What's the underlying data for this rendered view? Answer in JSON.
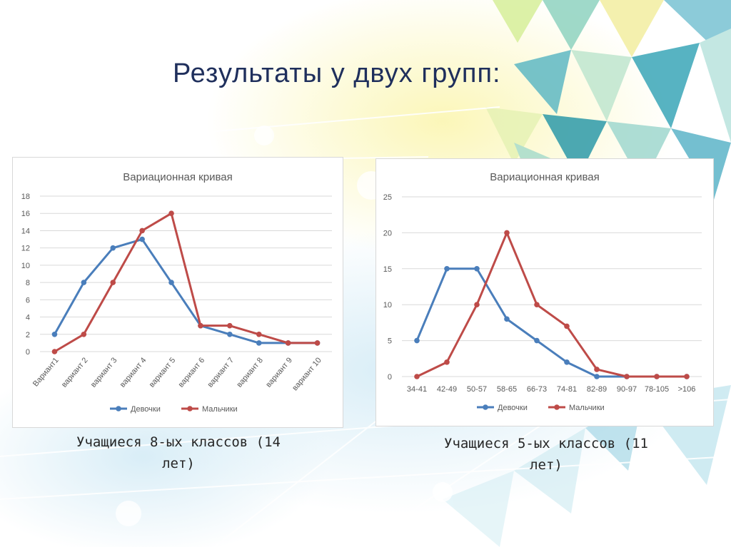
{
  "slide": {
    "title": "Результаты у двух групп:",
    "left_caption_line1": "Учащиеся 8-ых классов (14",
    "left_caption_line2": "лет)",
    "right_caption_line1": "Учащиеся 5-ых классов (11",
    "right_caption_line2": "лет)"
  },
  "colors": {
    "girls": "#4a7ebb",
    "boys": "#be4b48",
    "title": "#1f2f5c",
    "grid": "#d9d9d9"
  },
  "chart_data": [
    {
      "type": "line",
      "title": "Вариационная кривая",
      "categories": [
        "Вариант1",
        "вариант 2",
        "вариант 3",
        "вариант 4",
        "вариант 5",
        "вариант 6",
        "вариант 7",
        "вариант 8",
        "вариант 9",
        "вариант 10"
      ],
      "series": [
        {
          "name": "Девочки",
          "values": [
            2,
            8,
            12,
            13,
            8,
            3,
            2,
            1,
            1,
            1
          ]
        },
        {
          "name": "Мальчики",
          "values": [
            0,
            2,
            8,
            14,
            16,
            3,
            3,
            2,
            1,
            1
          ]
        }
      ],
      "ylim": [
        0,
        18
      ],
      "yticks": [
        0,
        2,
        4,
        6,
        8,
        10,
        12,
        14,
        16,
        18
      ],
      "grid": true,
      "legend": "bottom",
      "xlabel": "",
      "ylabel": ""
    },
    {
      "type": "line",
      "title": "Вариационная кривая",
      "categories": [
        "34-41",
        "42-49",
        "50-57",
        "58-65",
        "66-73",
        "74-81",
        "82-89",
        "90-97",
        "78-105",
        ">106"
      ],
      "series": [
        {
          "name": "Девочки",
          "values": [
            5,
            15,
            15,
            8,
            5,
            2,
            0,
            0,
            0,
            0
          ]
        },
        {
          "name": "Мальчики",
          "values": [
            0,
            2,
            10,
            20,
            10,
            7,
            1,
            0,
            0,
            0
          ]
        }
      ],
      "ylim": [
        0,
        25
      ],
      "yticks": [
        0,
        5,
        10,
        15,
        20,
        25
      ],
      "grid": true,
      "legend": "bottom",
      "xlabel": "",
      "ylabel": ""
    }
  ]
}
